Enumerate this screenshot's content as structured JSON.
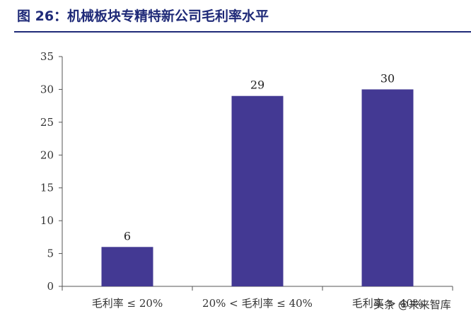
{
  "title": "图 26：机械板块专精特新公司毛利率水平",
  "watermark": "头条 @未来智库",
  "chart_data": {
    "type": "bar",
    "title": "",
    "xlabel": "",
    "ylabel": "",
    "categories": [
      "毛利率 ≤ 20%",
      "20% < 毛利率 ≤ 40%",
      "毛利率 > 40%"
    ],
    "values": [
      6,
      29,
      30
    ],
    "data_labels": [
      "6",
      "29",
      "30"
    ],
    "ylim": [
      0,
      35
    ],
    "yticks": [
      0,
      5,
      10,
      15,
      20,
      25,
      30,
      35
    ],
    "grid": false,
    "legend": "none",
    "bar_color": "#433993"
  }
}
